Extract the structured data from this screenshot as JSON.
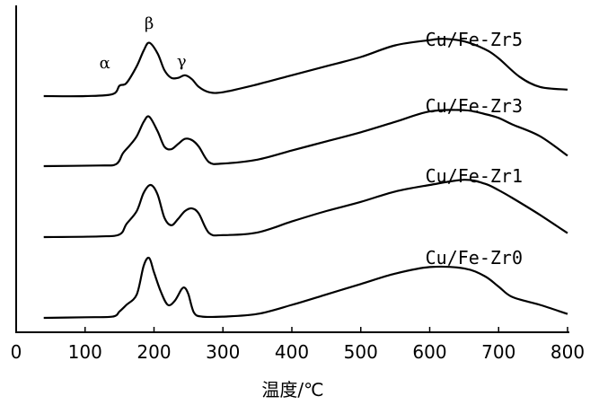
{
  "chart_data": {
    "type": "line",
    "title": "",
    "xlabel": "温度/℃",
    "ylabel": "",
    "xlim": [
      0,
      800
    ],
    "xticks": [
      0,
      100,
      200,
      300,
      400,
      500,
      600,
      700,
      800
    ],
    "y_axis_units": "arbitrary (offset traces)",
    "y_ticks_shown": false,
    "grid": false,
    "legend": "none; each curve labelled at right, above the trace",
    "line_color": "#000000",
    "peak_labels": [
      {
        "text": "α",
        "x": 152
      },
      {
        "text": "β",
        "x": 193
      },
      {
        "text": "γ",
        "x": 240
      }
    ],
    "series": [
      {
        "name": "Cu/Fe-Zr5",
        "x": [
          40,
          100,
          140,
          150,
          160,
          175,
          185,
          193,
          205,
          215,
          225,
          235,
          245,
          255,
          265,
          280,
          300,
          350,
          400,
          450,
          500,
          550,
          600,
          620,
          650,
          680,
          700,
          730,
          760,
          800
        ],
        "y": [
          0.0,
          0.0,
          0.15,
          0.8,
          1.0,
          2.3,
          3.5,
          4.1,
          3.3,
          2.0,
          1.4,
          1.4,
          1.6,
          1.3,
          0.7,
          0.3,
          0.3,
          0.9,
          1.6,
          2.3,
          3.0,
          3.9,
          4.3,
          4.4,
          4.2,
          3.6,
          2.9,
          1.5,
          0.7,
          0.5
        ]
      },
      {
        "name": "Cu/Fe-Zr3",
        "x": [
          40,
          120,
          145,
          155,
          165,
          175,
          185,
          193,
          205,
          215,
          225,
          235,
          245,
          255,
          265,
          280,
          300,
          350,
          400,
          450,
          500,
          550,
          600,
          650,
          680,
          700,
          720,
          760,
          800
        ],
        "y": [
          0.0,
          0.05,
          0.15,
          1.0,
          1.6,
          2.3,
          3.4,
          3.8,
          2.7,
          1.5,
          1.3,
          1.7,
          2.1,
          2.0,
          1.5,
          0.3,
          0.2,
          0.5,
          1.2,
          1.9,
          2.6,
          3.4,
          4.2,
          4.3,
          4.0,
          3.7,
          3.2,
          2.3,
          0.8
        ]
      },
      {
        "name": "Cu/Fe-Zr1",
        "x": [
          40,
          120,
          150,
          160,
          175,
          185,
          195,
          205,
          215,
          225,
          235,
          245,
          255,
          265,
          280,
          300,
          350,
          400,
          450,
          500,
          550,
          600,
          650,
          680,
          700,
          720,
          760,
          800
        ],
        "y": [
          0.0,
          0.05,
          0.2,
          1.0,
          2.0,
          3.4,
          4.0,
          3.3,
          1.5,
          0.9,
          1.4,
          2.0,
          2.2,
          1.8,
          0.3,
          0.15,
          0.35,
          1.2,
          2.0,
          2.7,
          3.5,
          4.0,
          4.4,
          4.1,
          3.6,
          3.0,
          1.7,
          0.3
        ]
      },
      {
        "name": "Cu/Fe-Zr0",
        "x": [
          40,
          100,
          140,
          150,
          160,
          175,
          185,
          193,
          200,
          210,
          220,
          230,
          240,
          245,
          250,
          258,
          270,
          300,
          350,
          400,
          450,
          500,
          550,
          600,
          650,
          680,
          700,
          720,
          760,
          800
        ],
        "y": [
          0.0,
          0.05,
          0.1,
          0.5,
          1.0,
          1.8,
          4.0,
          4.6,
          3.5,
          2.0,
          1.0,
          1.3,
          2.2,
          2.3,
          1.8,
          0.4,
          0.1,
          0.1,
          0.3,
          1.0,
          1.8,
          2.6,
          3.4,
          3.9,
          3.8,
          3.2,
          2.4,
          1.6,
          1.0,
          0.3
        ]
      }
    ]
  }
}
